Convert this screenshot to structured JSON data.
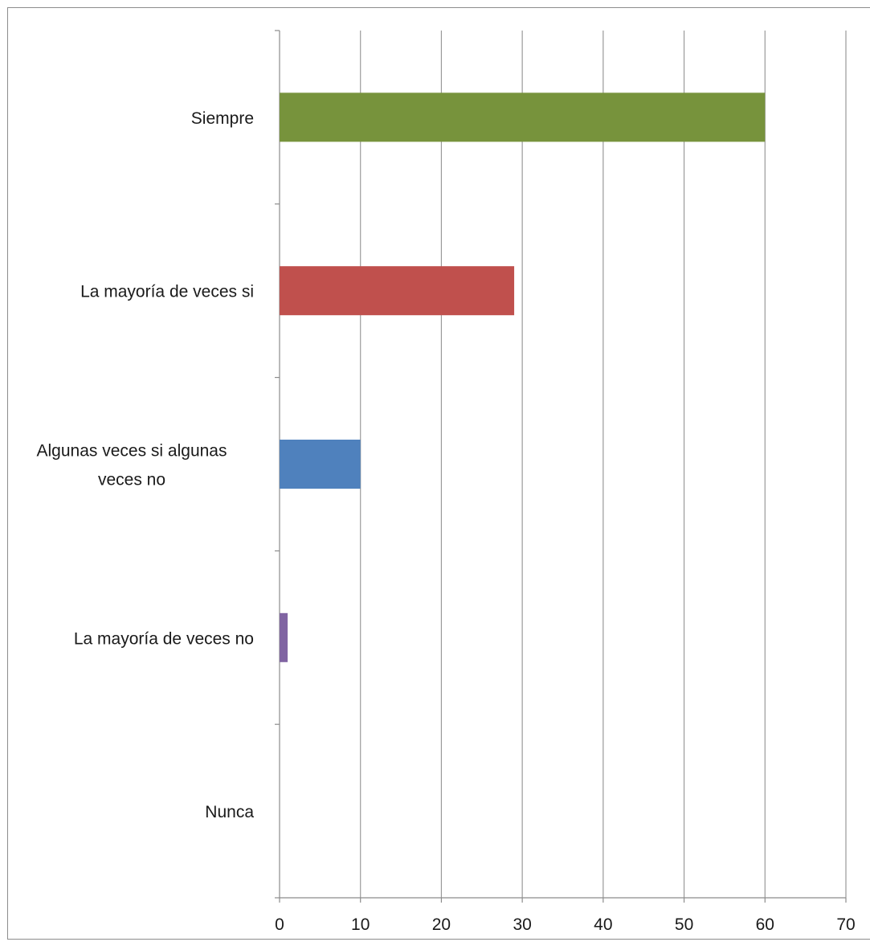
{
  "chart_data": {
    "type": "bar",
    "orientation": "horizontal",
    "title": "",
    "xlabel": "",
    "ylabel": "",
    "categories": [
      "Siempre",
      "La mayoría de veces si",
      "Algunas veces si algunas veces no",
      "La mayoría de veces  no",
      "Nunca"
    ],
    "category_lines": [
      [
        "Siempre"
      ],
      [
        "La mayoría de veces si"
      ],
      [
        "Algunas veces si algunas",
        "veces no"
      ],
      [
        "La mayoría de veces  no"
      ],
      [
        "Nunca"
      ]
    ],
    "values": [
      60,
      29,
      10,
      1,
      0
    ],
    "colors": [
      "#77933c",
      "#c0504d",
      "#4f81bd",
      "#8064a2",
      "#4bacc6"
    ],
    "xlim": [
      0,
      70
    ],
    "x_ticks": [
      0,
      10,
      20,
      30,
      40,
      50,
      60,
      70
    ],
    "grid": true,
    "legend": "none"
  }
}
